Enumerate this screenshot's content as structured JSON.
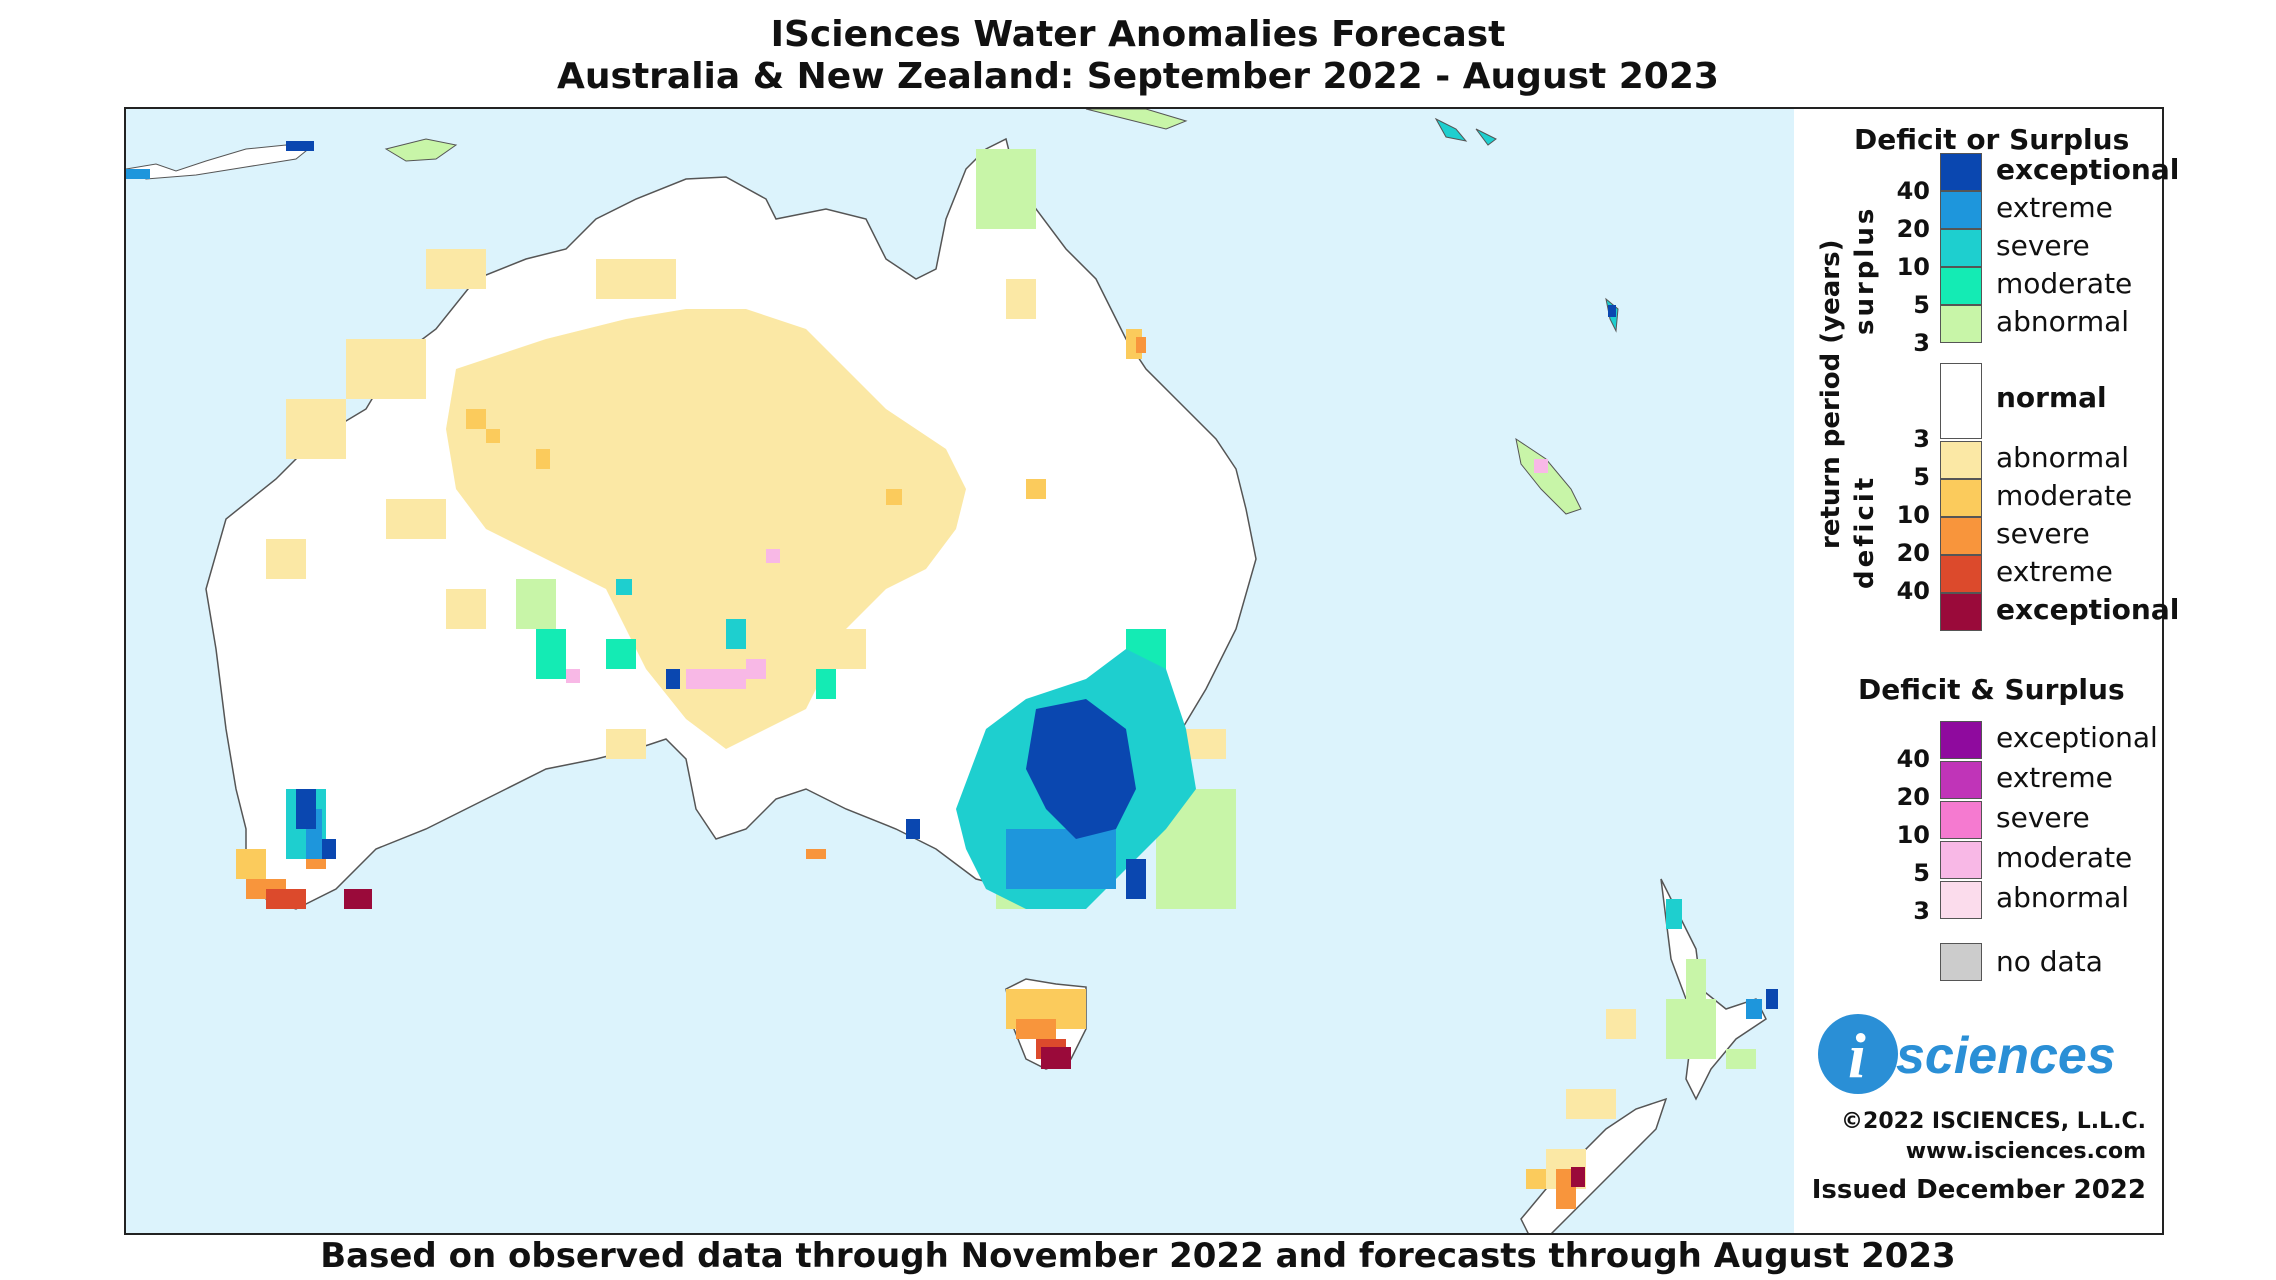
{
  "title_line1": "ISciences Water Anomalies Forecast",
  "title_line2": "Australia & New Zealand: September 2022 - August 2023",
  "footer": "Based on observed data through November 2022 and forecasts through August 2023",
  "legend": {
    "heading1": "Deficit or Surplus",
    "axis_label": "return period (years)",
    "surplus_label": "surplus",
    "deficit_label": "deficit",
    "surplus": [
      {
        "label": "exceptional",
        "color": "#0a47b0",
        "bold": true
      },
      {
        "label": "extreme",
        "color": "#1e96dc",
        "bold": false
      },
      {
        "label": "severe",
        "color": "#1ecfcf",
        "bold": false
      },
      {
        "label": "moderate",
        "color": "#14ebb4",
        "bold": false
      },
      {
        "label": "abnormal",
        "color": "#c8f5a8",
        "bold": false
      }
    ],
    "normal_label": "normal",
    "deficit": [
      {
        "label": "abnormal",
        "color": "#fbe8a5",
        "bold": false
      },
      {
        "label": "moderate",
        "color": "#fbcb5c",
        "bold": false
      },
      {
        "label": "severe",
        "color": "#f8953c",
        "bold": false
      },
      {
        "label": "extreme",
        "color": "#dc4a2c",
        "bold": false
      },
      {
        "label": "exceptional",
        "color": "#9a0a3a",
        "bold": true
      }
    ],
    "surplus_ticks": [
      "40",
      "20",
      "10",
      "5",
      "3"
    ],
    "deficit_ticks": [
      "3",
      "5",
      "10",
      "20",
      "40"
    ],
    "heading2": "Deficit & Surplus",
    "both": [
      {
        "label": "exceptional",
        "color": "#8f0a9e"
      },
      {
        "label": "extreme",
        "color": "#c034b8"
      },
      {
        "label": "severe",
        "color": "#f57ad0"
      },
      {
        "label": "moderate",
        "color": "#f8b8e6"
      },
      {
        "label": "abnormal",
        "color": "#fbdcec"
      }
    ],
    "both_ticks": [
      "40",
      "20",
      "10",
      "5",
      "3"
    ],
    "nodata_label": "no data",
    "nodata_color": "#cccccc"
  },
  "logo_text": "sciences",
  "logo_i": "i",
  "copyright": "©2022 ISCIENCES, L.L.C.",
  "website": "www.isciences.com",
  "issued": "Issued December 2022",
  "colors": {
    "ocean": "#dcf3fc",
    "land": "#ffffff",
    "outline": "#555555"
  }
}
